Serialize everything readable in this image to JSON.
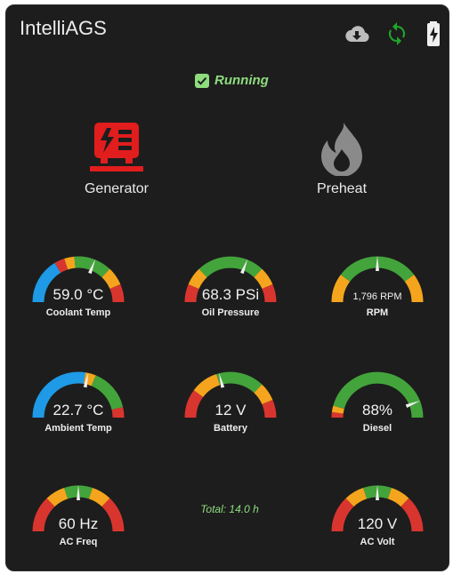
{
  "app": {
    "title": "IntelliAGS"
  },
  "header_icons": [
    {
      "name": "cloud-download-icon",
      "color": "#bdbdbd"
    },
    {
      "name": "sync-icon",
      "color": "#1fa52a"
    },
    {
      "name": "battery-charging-icon",
      "color": "#f0f0f0"
    }
  ],
  "status": {
    "text": "Running",
    "icon": "check-box-icon",
    "color": "#8edc7e"
  },
  "controls": {
    "generator": {
      "label": "Generator",
      "icon": "generator-icon",
      "color": "#e11d1d"
    },
    "preheat": {
      "label": "Preheat",
      "icon": "fire-icon",
      "color": "#8a8a8a"
    }
  },
  "colors": {
    "red": "#d9352f",
    "orange": "#f4a51d",
    "green": "#43a43b",
    "blue": "#1e9ae6"
  },
  "gauges": {
    "coolant": {
      "value": "59.0 °C",
      "label": "Coolant Temp",
      "level": 0.62
    },
    "oil": {
      "value": "68.3 PSi",
      "label": "Oil Pressure",
      "level": 0.62
    },
    "rpm": {
      "value": "1,796 RPM",
      "label": "RPM",
      "level": 0.5
    },
    "ambient": {
      "value": "22.7 °C",
      "label": "Ambient Temp",
      "level": 0.57
    },
    "battery": {
      "value": "12 V",
      "label": "Battery",
      "level": 0.42
    },
    "diesel": {
      "value": "88%",
      "label": "Diesel",
      "level": 0.88
    },
    "acfreq": {
      "value": "60 Hz",
      "label": "AC Freq",
      "level": 0.5
    },
    "acvolt": {
      "value": "120 V",
      "label": "AC Volt",
      "level": 0.5
    }
  },
  "total": {
    "text": "Total: 14.0 h"
  }
}
